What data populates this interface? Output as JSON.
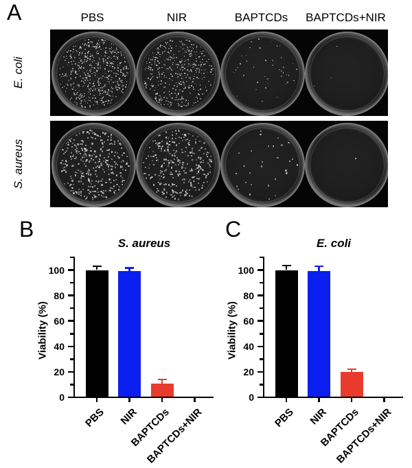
{
  "panelA": {
    "label": "A",
    "column_headers": [
      "PBS",
      "NIR",
      "BAPTCDs",
      "BAPTCDs+NIR"
    ],
    "rows": [
      {
        "label": "E. coli",
        "colony_size": 1.7,
        "plates": [
          {
            "condition": "PBS",
            "colony_count": 560
          },
          {
            "condition": "NIR",
            "colony_count": 420
          },
          {
            "condition": "BAPTCDs",
            "colony_count": 42
          },
          {
            "condition": "BAPTCDs+NIR",
            "colony_count": 3
          }
        ]
      },
      {
        "label": "S. aureus",
        "colony_size": 2.3,
        "plates": [
          {
            "condition": "PBS",
            "colony_count": 330
          },
          {
            "condition": "NIR",
            "colony_count": 295
          },
          {
            "condition": "BAPTCDs",
            "colony_count": 30
          },
          {
            "condition": "BAPTCDs+NIR",
            "colony_count": 1
          }
        ]
      }
    ]
  },
  "colors": {
    "bar_black": "#000000",
    "bar_blue": "#0b1ff0",
    "bar_red": "#e83b2d",
    "plate_background": "#050505",
    "colony": "#cfcfcf"
  },
  "chart_data": [
    {
      "type": "bar",
      "panel_label": "B",
      "title": "S. aureus",
      "ylabel": "Viability (%)",
      "xlabel": "",
      "categories": [
        "PBS",
        "NIR",
        "BAPTCDs",
        "BAPTCDs+NIR"
      ],
      "values": [
        100,
        99,
        11,
        0
      ],
      "errors": [
        3,
        2.5,
        3,
        0
      ],
      "bar_colors": [
        "#000000",
        "#0b1ff0",
        "#e83b2d",
        "#e83b2d"
      ],
      "ylim": [
        0,
        110
      ],
      "yticks": [
        0,
        20,
        40,
        60,
        80,
        100
      ],
      "minor_tick_step": 10,
      "grid": false,
      "legend": null
    },
    {
      "type": "bar",
      "panel_label": "C",
      "title": "E. coli",
      "ylabel": "Viability (%)",
      "xlabel": "",
      "categories": [
        "PBS",
        "NIR",
        "BAPTCDs",
        "BAPTCDs+NIR"
      ],
      "values": [
        100,
        99,
        20,
        0
      ],
      "errors": [
        3.5,
        4,
        2,
        0
      ],
      "bar_colors": [
        "#000000",
        "#0b1ff0",
        "#e83b2d",
        "#e83b2d"
      ],
      "ylim": [
        0,
        110
      ],
      "yticks": [
        0,
        20,
        40,
        60,
        80,
        100
      ],
      "minor_tick_step": 10,
      "grid": false,
      "legend": null
    }
  ]
}
